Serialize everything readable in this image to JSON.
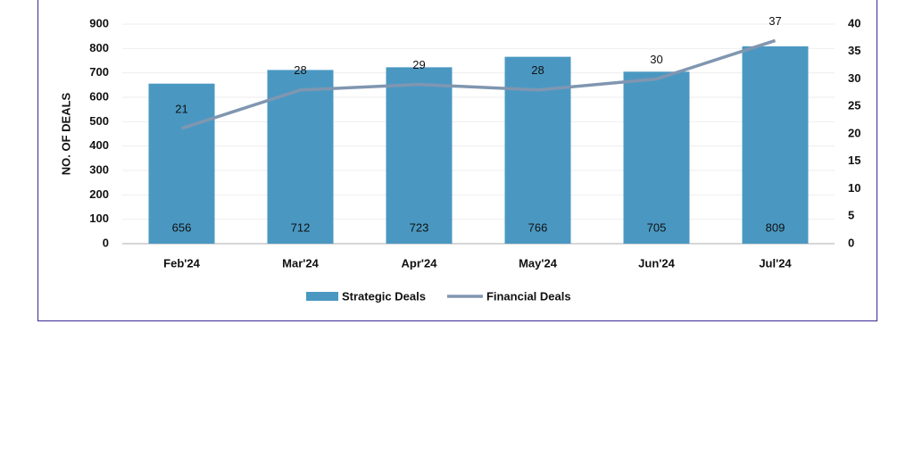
{
  "chart_data": {
    "type": "combo",
    "y_label": "NO. OF DEALS",
    "categories": [
      "Feb'24",
      "Mar'24",
      "Apr'24",
      "May'24",
      "Jun'24",
      "Jul'24"
    ],
    "series": [
      {
        "name": "Strategic Deals",
        "type": "bar",
        "color": "#4a98c2",
        "values": [
          656,
          712,
          723,
          766,
          705,
          809
        ]
      },
      {
        "name": "Financial Deals",
        "type": "line",
        "axis": "y2",
        "color": "#8096b0",
        "values": [
          21,
          28,
          29,
          28,
          30,
          37
        ]
      }
    ],
    "ylim": [
      0,
      900
    ],
    "yticks": [
      0,
      100,
      200,
      300,
      400,
      500,
      600,
      700,
      800,
      900
    ],
    "y2lim": [
      0,
      40
    ],
    "y2ticks": [
      0,
      5,
      10,
      15,
      20,
      25,
      30,
      35,
      40
    ],
    "grid": true
  }
}
